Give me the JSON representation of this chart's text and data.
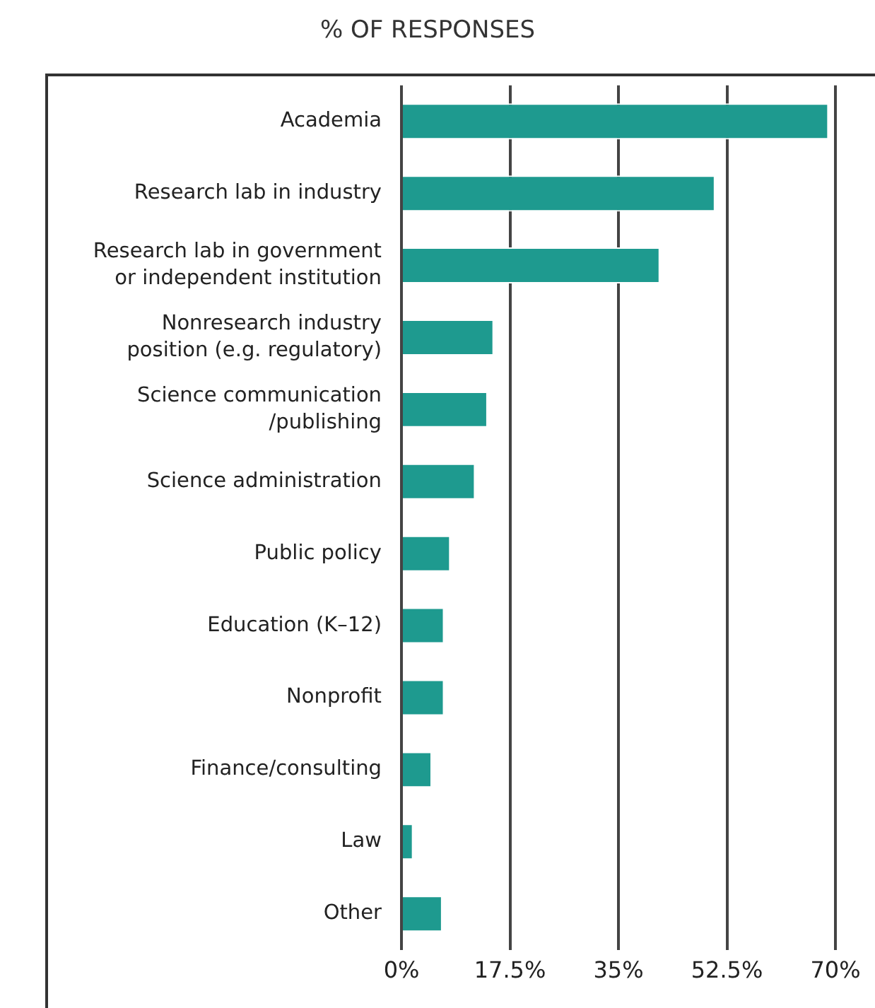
{
  "chart_data": {
    "type": "bar",
    "orientation": "horizontal",
    "title": "% OF RESPONSES",
    "categories": [
      "Academia",
      "Research lab in industry",
      "Research lab in government\nor independent institution",
      "Nonresearch industry\nposition (e.g. regulatory)",
      "Science communication\n/publishing",
      "Science administration",
      "Public policy",
      "Education (K–12)",
      "Nonprofit",
      "Finance/consulting",
      "Law",
      "Other"
    ],
    "values": [
      68.9,
      50.6,
      41.7,
      14.9,
      13.9,
      11.9,
      7.9,
      6.9,
      6.9,
      4.9,
      1.9,
      6.6
    ],
    "color": "#1e9a8f",
    "xlim": [
      0,
      70
    ],
    "xticks": [
      {
        "value": 0,
        "label": "0%"
      },
      {
        "value": 17.5,
        "label": "17.5%"
      },
      {
        "value": 35,
        "label": "35%"
      },
      {
        "value": 52.5,
        "label": "52.5%"
      },
      {
        "value": 70,
        "label": "70%"
      }
    ],
    "grid": "x",
    "legend": false
  }
}
